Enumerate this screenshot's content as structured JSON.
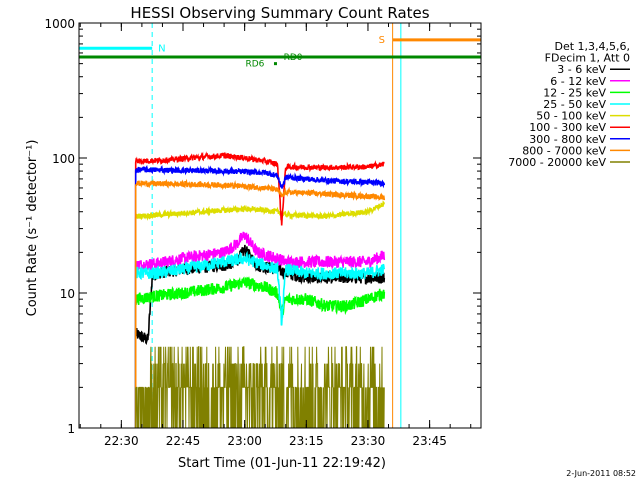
{
  "chart_data": {
    "type": "line",
    "title": "HESSI Observing Summary Count Rates",
    "xlabel": "Start Time (01-Jun-11 22:19:42)",
    "ylabel": "Count Rate (s⁻¹ detector⁻¹)",
    "footer_date": "2-Jun-2011 08:52",
    "y_scale": "log",
    "ylim": [
      1,
      1000
    ],
    "y_ticks": [
      1,
      10,
      100,
      1000
    ],
    "y_tick_labels": [
      "1",
      "10",
      "100",
      "1000"
    ],
    "xlim": [
      "22:19:42",
      "23:57:30"
    ],
    "x_ticks": [
      "22:30",
      "22:45",
      "23:00",
      "23:15",
      "23:30",
      "23:45"
    ],
    "x_tick_labels": [
      "22:30",
      "22:45",
      "23:00",
      "23:15",
      "23:30",
      "23:45"
    ],
    "legend": {
      "position": "right",
      "header": [
        "Det 1,3,4,5,6,",
        "FDecim 1, Att 0"
      ]
    },
    "data_start": "22:33:30",
    "data_end": "23:34:00",
    "series": [
      {
        "name": "3 - 6 keV",
        "color": "#000000",
        "x": [
          "22:33:30",
          "22:36:30",
          "22:37:30",
          "22:38:30",
          "22:45",
          "22:55",
          "22:58",
          "23:00",
          "23:03",
          "23:08",
          "23:10",
          "23:15",
          "23:20",
          "23:25",
          "23:30",
          "23:34"
        ],
        "values": [
          5,
          4.5,
          13,
          14,
          15,
          16,
          17,
          21,
          16,
          15,
          14,
          13,
          13,
          13,
          13,
          13
        ]
      },
      {
        "name": "6 - 12 keV",
        "color": "#ff00ff",
        "x": [
          "22:33:30",
          "22:38:30",
          "22:45",
          "22:55",
          "22:58",
          "23:00",
          "23:03",
          "23:08",
          "23:10",
          "23:15",
          "23:20",
          "23:25",
          "23:30",
          "23:34"
        ],
        "values": [
          16,
          16.5,
          18,
          20,
          23,
          27,
          20,
          18,
          17,
          17,
          17,
          17,
          17,
          19
        ]
      },
      {
        "name": "12 - 25 keV",
        "color": "#00ff00",
        "x": [
          "22:33:30",
          "22:38:30",
          "22:45",
          "22:55",
          "23:00",
          "23:05",
          "23:08",
          "23:09",
          "23:10",
          "23:15",
          "23:20",
          "23:25",
          "23:30",
          "23:34"
        ],
        "values": [
          9,
          9.5,
          10,
          11,
          12,
          11,
          10,
          7,
          9,
          9,
          8,
          8,
          9,
          10
        ]
      },
      {
        "name": "25 - 50 keV",
        "color": "#00ffff",
        "x": [
          "22:33:30",
          "22:38:30",
          "22:45",
          "22:55",
          "23:00",
          "23:05",
          "23:08",
          "23:09",
          "23:10",
          "23:15",
          "23:20",
          "23:25",
          "23:30",
          "23:34"
        ],
        "values": [
          14,
          14,
          15,
          17,
          18,
          16,
          15,
          6,
          15,
          14,
          14,
          14,
          14,
          15
        ]
      },
      {
        "name": "50 - 100 keV",
        "color": "#dddd00",
        "x": [
          "22:33:30",
          "22:40",
          "22:50",
          "23:00",
          "23:05",
          "23:08",
          "23:10",
          "23:20",
          "23:30",
          "23:34"
        ],
        "values": [
          37,
          38,
          40,
          42,
          41,
          40,
          38,
          37,
          40,
          46
        ]
      },
      {
        "name": "100 - 300 keV",
        "color": "#ff0000",
        "x": [
          "22:33:30",
          "22:40",
          "22:50",
          "22:55",
          "23:00",
          "23:05",
          "23:08",
          "23:09",
          "23:10",
          "23:20",
          "23:30",
          "23:34"
        ],
        "values": [
          95,
          96,
          102,
          104,
          100,
          95,
          90,
          32,
          86,
          85,
          86,
          90
        ]
      },
      {
        "name": "300 - 800 keV",
        "color": "#0000ff",
        "x": [
          "22:33:30",
          "22:45",
          "22:55",
          "23:05",
          "23:08",
          "23:09",
          "23:10",
          "23:20",
          "23:30",
          "23:34"
        ],
        "values": [
          82,
          81,
          80,
          78,
          74,
          60,
          72,
          68,
          66,
          65
        ]
      },
      {
        "name": "800 - 7000 keV",
        "color": "#ff8800",
        "x": [
          "22:33:30",
          "22:45",
          "22:55",
          "23:05",
          "23:08",
          "23:09",
          "23:10",
          "23:20",
          "23:30",
          "23:34"
        ],
        "values": [
          65,
          64,
          63,
          60,
          58,
          52,
          56,
          54,
          52,
          51
        ]
      },
      {
        "name": "7000 - 20000 keV",
        "color": "#808000",
        "x": [
          "22:33:30",
          "22:38",
          "22:42",
          "22:50",
          "23:00",
          "23:10",
          "23:20",
          "23:34"
        ],
        "values": [
          1.8,
          2.4,
          2.6,
          2.7,
          2.7,
          2.6,
          2.6,
          2.6
        ]
      }
    ],
    "annotations": [
      {
        "label": "N",
        "color": "#00ffff",
        "x_start": "22:19:42",
        "x_end": "22:37:30",
        "y": 650,
        "dashed_line_x": "22:37:30"
      },
      {
        "label": "S",
        "color": "#ff8800",
        "x_start": "23:36:00",
        "x_end": "23:57:30",
        "y": 750,
        "solid_line_x": "23:36:00"
      },
      {
        "label": "RD6",
        "color": "#008800",
        "x": "23:07:30",
        "y": 500
      },
      {
        "label": "RD0",
        "color": "#008800",
        "x": "23:08:30",
        "y": 560,
        "line_x_start": "22:19:42",
        "line_x_end": "23:57:30"
      }
    ],
    "vertical_markers": [
      {
        "x": "22:19:42",
        "color": "#00ffff",
        "style": "solid"
      },
      {
        "x": "22:37:30",
        "color": "#00ffff",
        "style": "dashed"
      },
      {
        "x": "23:36:00",
        "color": "#ff8800",
        "style": "solid"
      },
      {
        "x": "23:38:00",
        "color": "#00ffff",
        "style": "solid"
      },
      {
        "x": "23:57:30",
        "color": "#00ffff",
        "style": "dashed"
      }
    ],
    "grid": false
  }
}
